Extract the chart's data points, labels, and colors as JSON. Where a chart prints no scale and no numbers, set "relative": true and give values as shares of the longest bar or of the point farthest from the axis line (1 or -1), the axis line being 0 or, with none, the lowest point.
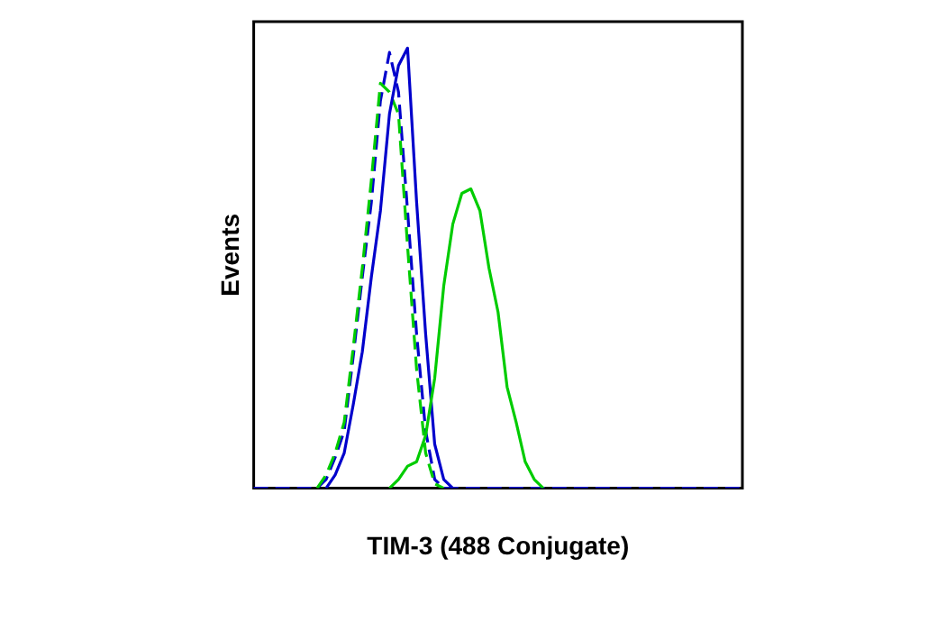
{
  "chart_data": {
    "type": "line",
    "xlabel": "TIM-3 (488 Conjugate)",
    "ylabel": "Events",
    "relative": true,
    "grid": false,
    "legend": false,
    "marker": "none",
    "categories": [
      null,
      null,
      null,
      null,
      null,
      null,
      null,
      null,
      null,
      null,
      null,
      null,
      null,
      null,
      null,
      null,
      null,
      null,
      null,
      null,
      null,
      null,
      null,
      null,
      null,
      null,
      null,
      null,
      null,
      null,
      null,
      null,
      null,
      null,
      null,
      null,
      null,
      null,
      null,
      null,
      null,
      null,
      null,
      null,
      null,
      null,
      null,
      null,
      null,
      null,
      null,
      null,
      null,
      null,
      null
    ],
    "series": [
      {
        "color": "#00cc00",
        "line_style": "solid",
        "values": [
          null,
          null,
          null,
          null,
          null,
          null,
          null,
          null,
          null,
          null,
          null,
          null,
          null,
          null,
          null,
          0,
          0.02,
          0.05,
          0.06,
          0.12,
          0.25,
          0.46,
          0.6,
          0.67,
          0.68,
          0.63,
          0.5,
          0.4,
          0.23,
          0.15,
          0.06,
          0.02,
          0,
          null,
          null,
          null,
          null,
          null,
          null,
          null,
          null,
          null,
          null,
          null,
          null,
          null,
          null,
          null,
          null,
          null,
          null,
          null,
          null,
          null,
          null
        ]
      },
      {
        "color": "#0000cc",
        "line_style": "solid",
        "values": [
          null,
          null,
          null,
          null,
          null,
          null,
          null,
          null,
          0,
          0.03,
          0.08,
          0.19,
          0.31,
          0.48,
          0.63,
          0.85,
          0.96,
          1,
          0.65,
          0.35,
          0.1,
          0.02,
          0,
          null,
          null,
          null,
          null,
          null,
          null,
          null,
          null,
          null,
          null,
          null,
          null,
          null,
          null,
          null,
          null,
          null,
          null,
          null,
          null,
          null,
          null,
          null,
          null,
          null,
          null,
          null,
          null,
          null,
          null,
          null,
          null
        ]
      },
      {
        "color": "#00cc00",
        "line_style": "dashed",
        "values": [
          null,
          null,
          null,
          null,
          null,
          null,
          null,
          0,
          0.03,
          0.08,
          0.15,
          0.32,
          0.5,
          0.7,
          0.92,
          0.9,
          0.85,
          0.55,
          0.27,
          0.08,
          0.01,
          0,
          null,
          null,
          null,
          null,
          null,
          null,
          null,
          null,
          null,
          null,
          null,
          null,
          null,
          null,
          null,
          null,
          null,
          null,
          null,
          null,
          null,
          null,
          null,
          null,
          null,
          null,
          null,
          null,
          null,
          null,
          null,
          null,
          null
        ]
      },
      {
        "color": "#0000cc",
        "line_style": "dashed",
        "values": [
          0,
          0,
          0,
          0,
          0,
          0,
          0,
          0,
          0.02,
          0.07,
          0.13,
          0.3,
          0.48,
          0.65,
          0.88,
          0.99,
          0.9,
          0.63,
          0.35,
          0.13,
          0.02,
          0,
          0,
          0,
          0,
          0,
          0,
          0,
          0,
          0,
          0,
          0,
          0,
          0,
          0,
          0,
          0,
          0,
          0,
          0,
          0,
          0,
          0,
          0,
          0,
          0,
          0,
          0,
          0,
          0,
          0,
          0,
          0,
          0,
          0
        ]
      }
    ]
  }
}
